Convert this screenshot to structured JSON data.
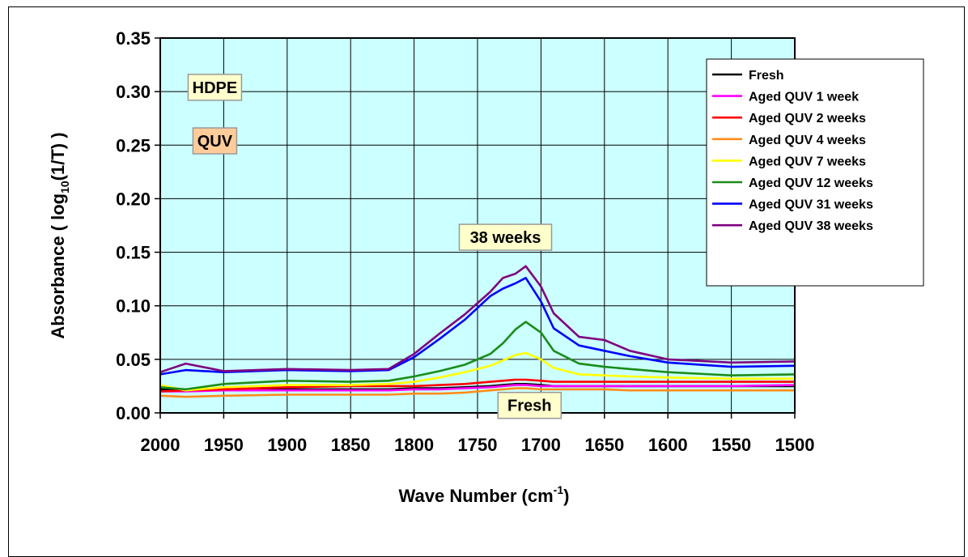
{
  "chart_data": {
    "type": "line",
    "xlabel": "Wave Number (cm⁻¹)",
    "xlabel_main": "Wave Number (cm",
    "xlabel_sup": "-1",
    "xlabel_end": ")",
    "ylabel": "Absorbance ( log₁₀(1/T) )",
    "ylabel_pre": "Absorbance ( log",
    "ylabel_sub": "10",
    "ylabel_post": "(1/T) )",
    "xlim": [
      2000,
      1500
    ],
    "x_reversed": true,
    "ylim": [
      0,
      0.35
    ],
    "x_ticks": [
      "2000",
      "1950",
      "1900",
      "1850",
      "1800",
      "1750",
      "1700",
      "1650",
      "1600",
      "1550",
      "1500"
    ],
    "y_ticks": [
      "0.00",
      "0.05",
      "0.10",
      "0.15",
      "0.20",
      "0.25",
      "0.30",
      "0.35"
    ],
    "grid": true,
    "plot_background": "#ccffff",
    "legend_position": "top-right",
    "annotations": [
      {
        "text": "HDPE",
        "x": 1957,
        "y": 0.304,
        "bg": "#ffffcc"
      },
      {
        "text": "QUV",
        "x": 1957,
        "y": 0.254,
        "bg": "#ffcc99"
      },
      {
        "text": "38 weeks",
        "x": 1728,
        "y": 0.164,
        "bg": "#ffffcc"
      },
      {
        "text": "Fresh",
        "x": 1709,
        "y": 0.007,
        "bg": "#ffffcc"
      }
    ],
    "x": [
      2000,
      1980,
      1950,
      1900,
      1850,
      1820,
      1800,
      1780,
      1760,
      1740,
      1730,
      1720,
      1712,
      1700,
      1690,
      1670,
      1650,
      1630,
      1600,
      1550,
      1500
    ],
    "series": [
      {
        "name": "Fresh",
        "color": "#000000",
        "values": [
          0.022,
          0.022,
          0.022,
          0.022,
          0.022,
          0.022,
          0.023,
          0.023,
          0.024,
          0.025,
          0.026,
          0.027,
          0.027,
          0.026,
          0.025,
          0.025,
          0.025,
          0.025,
          0.025,
          0.025,
          0.025
        ]
      },
      {
        "name": "Aged QUV 1 week",
        "color": "#ff00ff",
        "values": [
          0.02,
          0.02,
          0.021,
          0.021,
          0.021,
          0.021,
          0.022,
          0.022,
          0.023,
          0.024,
          0.025,
          0.026,
          0.026,
          0.025,
          0.025,
          0.025,
          0.025,
          0.025,
          0.025,
          0.025,
          0.026
        ]
      },
      {
        "name": "Aged QUV 2 weeks",
        "color": "#ff0000",
        "values": [
          0.02,
          0.021,
          0.022,
          0.024,
          0.025,
          0.025,
          0.025,
          0.026,
          0.027,
          0.029,
          0.03,
          0.031,
          0.031,
          0.03,
          0.029,
          0.029,
          0.029,
          0.029,
          0.029,
          0.029,
          0.029
        ]
      },
      {
        "name": "Aged QUV 4 weeks",
        "color": "#ff8c1a",
        "values": [
          0.016,
          0.015,
          0.016,
          0.017,
          0.017,
          0.017,
          0.018,
          0.018,
          0.019,
          0.021,
          0.022,
          0.023,
          0.023,
          0.022,
          0.022,
          0.022,
          0.022,
          0.021,
          0.021,
          0.021,
          0.021
        ]
      },
      {
        "name": "Aged QUV 7 weeks",
        "color": "#ffff00",
        "values": [
          0.026,
          0.021,
          0.024,
          0.026,
          0.026,
          0.027,
          0.029,
          0.033,
          0.038,
          0.044,
          0.049,
          0.054,
          0.056,
          0.05,
          0.042,
          0.036,
          0.035,
          0.034,
          0.033,
          0.032,
          0.032
        ]
      },
      {
        "name": "Aged QUV 12 weeks",
        "color": "#1a8c1a",
        "values": [
          0.024,
          0.022,
          0.027,
          0.03,
          0.029,
          0.03,
          0.034,
          0.039,
          0.045,
          0.055,
          0.065,
          0.078,
          0.085,
          0.075,
          0.058,
          0.046,
          0.043,
          0.041,
          0.038,
          0.035,
          0.036
        ]
      },
      {
        "name": "Aged QUV 31 weeks",
        "color": "#0000ff",
        "values": [
          0.036,
          0.04,
          0.038,
          0.04,
          0.039,
          0.04,
          0.052,
          0.069,
          0.087,
          0.109,
          0.116,
          0.121,
          0.126,
          0.104,
          0.079,
          0.063,
          0.058,
          0.053,
          0.047,
          0.043,
          0.044
        ]
      },
      {
        "name": "Aged QUV 38 weeks",
        "color": "#800080",
        "values": [
          0.038,
          0.046,
          0.039,
          0.041,
          0.04,
          0.041,
          0.055,
          0.074,
          0.092,
          0.113,
          0.126,
          0.13,
          0.137,
          0.118,
          0.093,
          0.071,
          0.068,
          0.058,
          0.05,
          0.047,
          0.048
        ]
      }
    ]
  }
}
